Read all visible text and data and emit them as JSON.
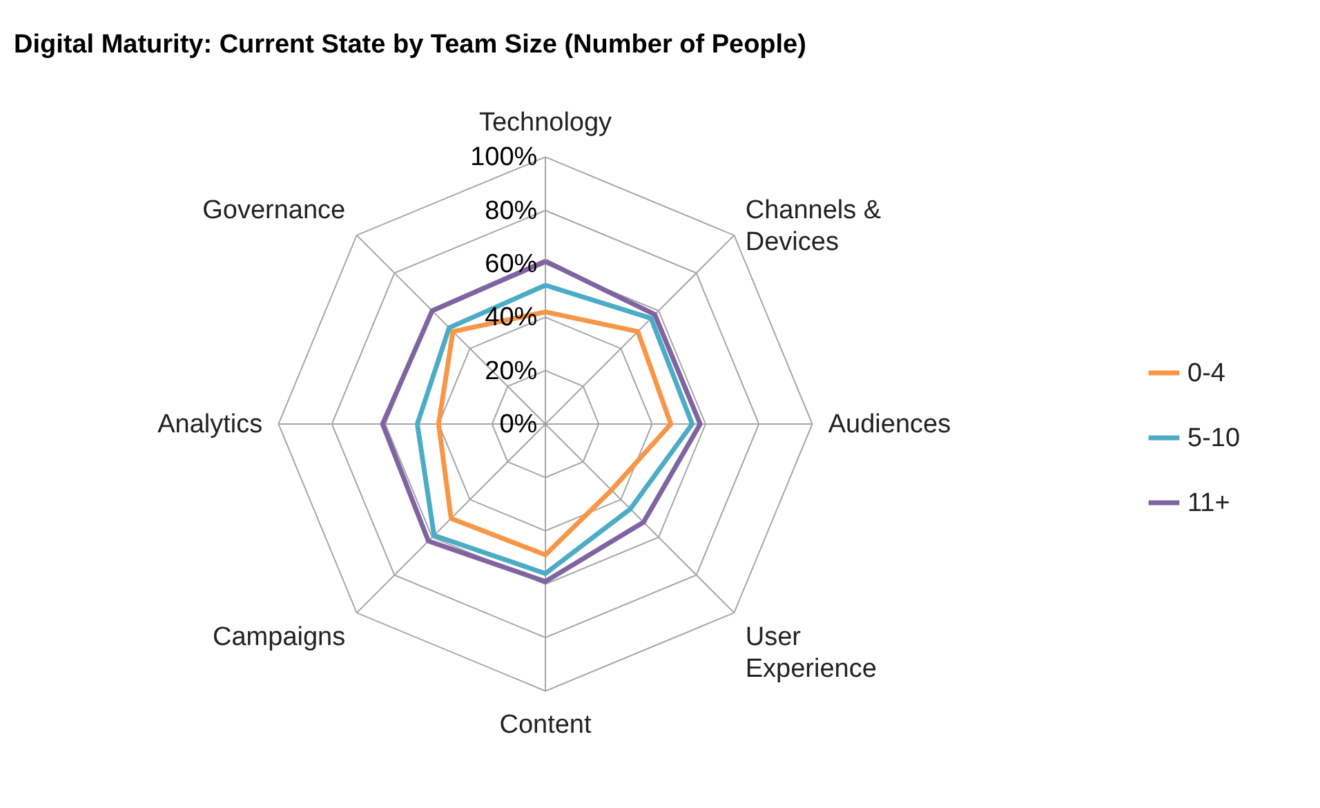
{
  "chart_data": {
    "type": "radar",
    "title": "Digital Maturity: Current State by Team Size (Number of People)",
    "categories": [
      "Technology",
      "Channels & Devices",
      "Audiences",
      "User Experience",
      "Content",
      "Campaigns",
      "Analytics",
      "Governance"
    ],
    "series": [
      {
        "name": "0-4",
        "color": "#f79646",
        "values": [
          42,
          49,
          47,
          35,
          49,
          50,
          40,
          49
        ]
      },
      {
        "name": "5-10",
        "color": "#4bacc6",
        "values": [
          52,
          56,
          55,
          45,
          56,
          59,
          48,
          51
        ]
      },
      {
        "name": "11+",
        "color": "#8064a2",
        "values": [
          61,
          58,
          58,
          52,
          59,
          62,
          61,
          60
        ]
      }
    ],
    "ylim": [
      0,
      100
    ],
    "yticks": [
      {
        "value": 0,
        "label": "0%"
      },
      {
        "value": 20,
        "label": "20%"
      },
      {
        "value": 40,
        "label": "40%"
      },
      {
        "value": 60,
        "label": "60%"
      },
      {
        "value": 80,
        "label": "80%"
      },
      {
        "value": 100,
        "label": "100%"
      }
    ],
    "grid": true,
    "legend": "right"
  }
}
